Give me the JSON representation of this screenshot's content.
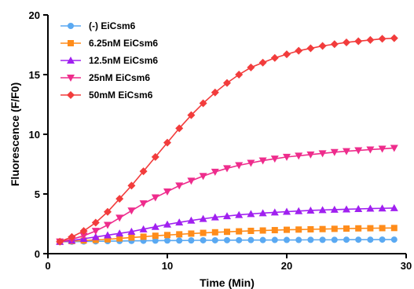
{
  "chart_data": {
    "type": "line",
    "title": "",
    "xlabel": "Time (Min)",
    "ylabel": "Fluorescence (F/F0)",
    "xlim": [
      0,
      30
    ],
    "ylim": [
      0,
      20
    ],
    "xticks": [
      0,
      10,
      20,
      30
    ],
    "yticks": [
      0,
      5,
      10,
      15,
      20
    ],
    "grid": false,
    "legend": "top-left",
    "x": [
      1,
      2,
      3,
      4,
      5,
      6,
      7,
      8,
      9,
      10,
      11,
      12,
      13,
      14,
      15,
      16,
      17,
      18,
      19,
      20,
      21,
      22,
      23,
      24,
      25,
      26,
      27,
      28,
      29
    ],
    "series": [
      {
        "name": "(-) EiCsm6",
        "color": "#5aa9f2",
        "marker": "circle",
        "values": [
          1.0,
          1.0,
          1.02,
          1.03,
          1.05,
          1.06,
          1.07,
          1.08,
          1.09,
          1.1,
          1.1,
          1.11,
          1.12,
          1.12,
          1.13,
          1.13,
          1.14,
          1.14,
          1.15,
          1.15,
          1.15,
          1.16,
          1.16,
          1.16,
          1.17,
          1.17,
          1.17,
          1.18,
          1.18
        ]
      },
      {
        "name": "6.25nM EiCsm6",
        "color": "#ff8c1a",
        "marker": "square",
        "values": [
          1.0,
          1.05,
          1.1,
          1.15,
          1.2,
          1.28,
          1.35,
          1.42,
          1.5,
          1.56,
          1.62,
          1.68,
          1.74,
          1.79,
          1.83,
          1.87,
          1.91,
          1.94,
          1.97,
          2.0,
          2.02,
          2.04,
          2.06,
          2.08,
          2.1,
          2.12,
          2.13,
          2.14,
          2.15
        ]
      },
      {
        "name": "12.5nM EiCsm6",
        "color": "#a020f0",
        "marker": "triangle-up",
        "values": [
          1.0,
          1.1,
          1.25,
          1.4,
          1.55,
          1.7,
          1.85,
          2.05,
          2.25,
          2.45,
          2.62,
          2.78,
          2.92,
          3.05,
          3.15,
          3.25,
          3.33,
          3.4,
          3.46,
          3.52,
          3.57,
          3.62,
          3.66,
          3.69,
          3.72,
          3.75,
          3.78,
          3.8,
          3.82
        ]
      },
      {
        "name": "25nM EiCsm6",
        "color": "#ee2c8c",
        "marker": "triangle-down",
        "values": [
          1.0,
          1.2,
          1.5,
          1.9,
          2.4,
          3.0,
          3.6,
          4.2,
          4.7,
          5.2,
          5.7,
          6.1,
          6.5,
          6.85,
          7.15,
          7.4,
          7.6,
          7.8,
          7.95,
          8.1,
          8.2,
          8.3,
          8.4,
          8.5,
          8.58,
          8.65,
          8.72,
          8.78,
          8.85
        ]
      },
      {
        "name": "50mM EiCsm6",
        "color": "#f23c3c",
        "marker": "diamond",
        "values": [
          1.0,
          1.4,
          1.9,
          2.6,
          3.5,
          4.6,
          5.7,
          6.9,
          8.1,
          9.3,
          10.5,
          11.6,
          12.6,
          13.5,
          14.3,
          15.0,
          15.6,
          16.0,
          16.4,
          16.7,
          17.0,
          17.2,
          17.4,
          17.55,
          17.7,
          17.8,
          17.9,
          18.0,
          18.05
        ]
      }
    ]
  }
}
